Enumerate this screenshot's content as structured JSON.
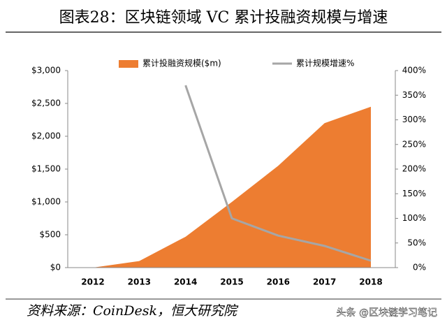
{
  "chart_data": {
    "type": "area",
    "title": "图表28：区块链领域 VC 累计投融资规模与增速",
    "source": "资料来源：CoinDesk，恒大研究院",
    "watermark": "头条 @区块链学习笔记",
    "categories": [
      "2012",
      "2013",
      "2014",
      "2015",
      "2016",
      "2017",
      "2018"
    ],
    "series": [
      {
        "name": "累计投融资规模($m)",
        "color": "#ed7d31",
        "type": "area",
        "values": [
          0,
          100,
          470,
          1000,
          1550,
          2200,
          2450
        ]
      },
      {
        "name": "累计规模增速%",
        "color": "#a6a6a6",
        "type": "line",
        "axis": "y2",
        "values": [
          null,
          null,
          370,
          100,
          65,
          44,
          14
        ]
      }
    ],
    "ylim": [
      0,
      3000
    ],
    "yticks": [
      {
        "value": 0,
        "label": "$0"
      },
      {
        "value": 500,
        "label": "$500"
      },
      {
        "value": 1000,
        "label": "$1,000"
      },
      {
        "value": 1500,
        "label": "$1,500"
      },
      {
        "value": 2000,
        "label": "$2,000"
      },
      {
        "value": 2500,
        "label": "$2,500"
      },
      {
        "value": 3000,
        "label": "$3,000"
      }
    ],
    "y2lim": [
      0,
      400
    ],
    "y2ticks": [
      {
        "value": 0,
        "label": "0%"
      },
      {
        "value": 50,
        "label": "50%"
      },
      {
        "value": 100,
        "label": "100%"
      },
      {
        "value": 150,
        "label": "150%"
      },
      {
        "value": 200,
        "label": "200%"
      },
      {
        "value": 250,
        "label": "250%"
      },
      {
        "value": 300,
        "label": "300%"
      },
      {
        "value": 350,
        "label": "350%"
      },
      {
        "value": 400,
        "label": "400%"
      }
    ],
    "grid": false,
    "legend": "top"
  }
}
